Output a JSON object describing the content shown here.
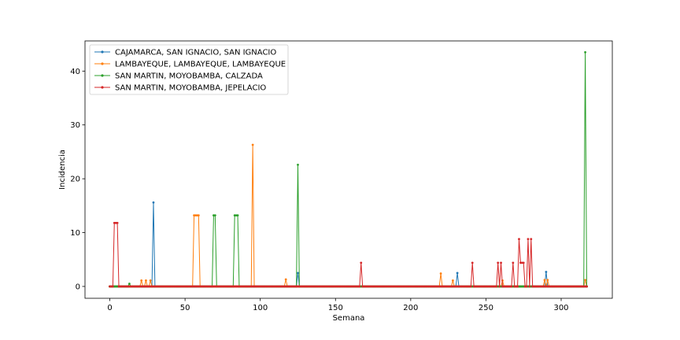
{
  "chart_data": {
    "type": "line",
    "xlabel": "Semana",
    "ylabel": "Incidencia",
    "xlim": [
      -16.5,
      334
    ],
    "ylim": [
      -2.2,
      45.6
    ],
    "xticks": [
      0,
      50,
      100,
      150,
      200,
      250,
      300
    ],
    "yticks": [
      0,
      10,
      20,
      30,
      40
    ],
    "grid": false,
    "legend_placement": "upper-left",
    "series_length": 318,
    "series": [
      {
        "name": "CAJAMARCA, SAN IGNACIO, SAN IGNACIO",
        "color": "#1f77b4",
        "nonzero": [
          {
            "x": 29,
            "y": 15.6
          },
          {
            "x": 125,
            "y": 2.5
          },
          {
            "x": 231,
            "y": 2.5
          },
          {
            "x": 290,
            "y": 2.7
          }
        ]
      },
      {
        "name": "LAMBAYEQUE, LAMBAYEQUE, LAMBAYEQUE",
        "color": "#ff7f0e",
        "nonzero": [
          {
            "x": 21,
            "y": 1.1
          },
          {
            "x": 24,
            "y": 1.1
          },
          {
            "x": 27,
            "y": 1.1
          },
          {
            "x": 56,
            "y": 13.2
          },
          {
            "x": 57,
            "y": 13.2
          },
          {
            "x": 58,
            "y": 13.2
          },
          {
            "x": 59,
            "y": 13.2
          },
          {
            "x": 95,
            "y": 26.3
          },
          {
            "x": 117,
            "y": 1.3
          },
          {
            "x": 220,
            "y": 2.4
          },
          {
            "x": 228,
            "y": 1.1
          },
          {
            "x": 261,
            "y": 1.1
          },
          {
            "x": 289,
            "y": 1.2
          },
          {
            "x": 291,
            "y": 1.2
          },
          {
            "x": 316,
            "y": 1.2
          }
        ]
      },
      {
        "name": "SAN MARTIN, MOYOBAMBA, CALZADA",
        "color": "#2ca02c",
        "nonzero": [
          {
            "x": 13,
            "y": 0.5
          },
          {
            "x": 69,
            "y": 13.2
          },
          {
            "x": 70,
            "y": 13.2
          },
          {
            "x": 83,
            "y": 13.2
          },
          {
            "x": 84,
            "y": 13.2
          },
          {
            "x": 85,
            "y": 13.2
          },
          {
            "x": 125,
            "y": 22.6
          },
          {
            "x": 316,
            "y": 43.5
          }
        ]
      },
      {
        "name": "SAN MARTIN, MOYOBAMBA, JEPELACIO",
        "color": "#d62728",
        "nonzero": [
          {
            "x": 3,
            "y": 11.8
          },
          {
            "x": 4,
            "y": 11.8
          },
          {
            "x": 5,
            "y": 11.8
          },
          {
            "x": 167,
            "y": 4.4
          },
          {
            "x": 241,
            "y": 4.4
          },
          {
            "x": 258,
            "y": 4.4
          },
          {
            "x": 260,
            "y": 4.4
          },
          {
            "x": 268,
            "y": 4.4
          },
          {
            "x": 272,
            "y": 8.8
          },
          {
            "x": 273,
            "y": 4.4
          },
          {
            "x": 274,
            "y": 4.4
          },
          {
            "x": 275,
            "y": 4.4
          },
          {
            "x": 278,
            "y": 8.8
          },
          {
            "x": 280,
            "y": 8.8
          }
        ]
      }
    ]
  }
}
